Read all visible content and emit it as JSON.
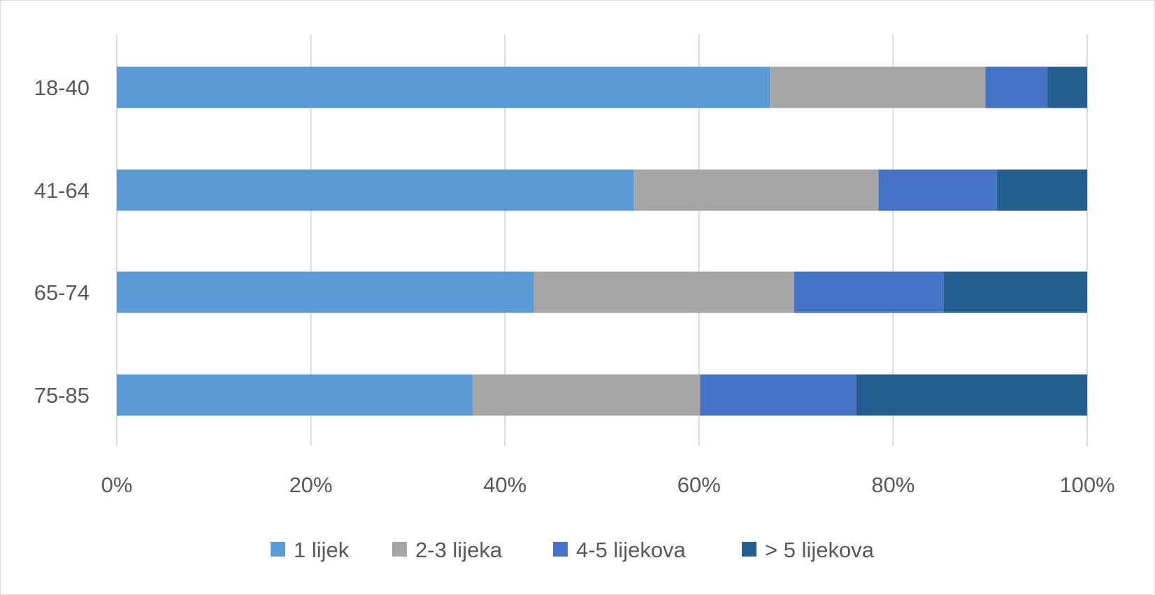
{
  "chart_data": {
    "type": "bar",
    "orientation": "horizontal",
    "stacked": "percent",
    "categories": [
      "18-40",
      "41-64",
      "65-74",
      "75-85"
    ],
    "series": [
      {
        "name": "1 lijek",
        "color": "#5B9BD5",
        "values": [
          67.3,
          53.3,
          43.0,
          36.7
        ]
      },
      {
        "name": "2-3 lijeka",
        "color": "#A5A5A5",
        "values": [
          22.2,
          25.2,
          26.8,
          23.4
        ]
      },
      {
        "name": "4-5 lijekova",
        "color": "#4472C4",
        "values": [
          6.4,
          12.2,
          15.4,
          16.1
        ]
      },
      {
        "name": "> 5 lijekova",
        "color": "#255E91",
        "values": [
          4.1,
          9.3,
          14.8,
          23.8
        ]
      }
    ],
    "xlim": [
      0,
      100
    ],
    "xticks": [
      "0%",
      "20%",
      "40%",
      "60%",
      "80%",
      "100%"
    ],
    "grid": "vertical",
    "legend": "bottom",
    "title": "",
    "xlabel": "",
    "ylabel": ""
  }
}
